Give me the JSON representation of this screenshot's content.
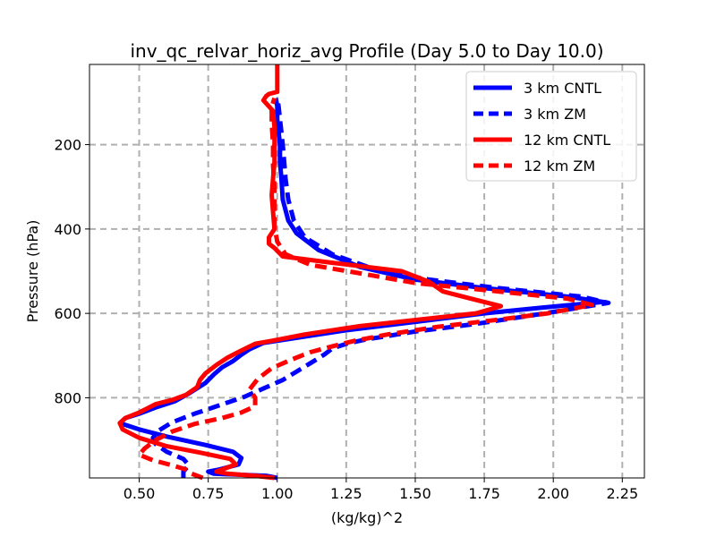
{
  "chart_data": {
    "type": "line",
    "title": "inv_qc_relvar_horiz_avg Profile (Day 5.0 to Day 10.0)",
    "xlabel": "(kg/kg)^2",
    "ylabel": "Pressure (hPa)",
    "xlim": [
      0.32,
      2.33
    ],
    "ylim": [
      990,
      10
    ],
    "y_inverted": true,
    "grid": true,
    "legend_position": "top-right",
    "xticks": [
      0.5,
      0.75,
      1.0,
      1.25,
      1.5,
      1.75,
      2.0,
      2.25
    ],
    "xtick_labels": [
      "0.50",
      "0.75",
      "1.00",
      "1.25",
      "1.50",
      "1.75",
      "2.00",
      "2.25"
    ],
    "yticks": [
      200,
      400,
      600,
      800
    ],
    "ytick_labels": [
      "200",
      "400",
      "600",
      "800"
    ],
    "series": [
      {
        "name": "3 km CNTL",
        "color": "#0000ff",
        "style": "solid",
        "points": [
          [
            1.0,
            990
          ],
          [
            0.96,
            985
          ],
          [
            0.77,
            980
          ],
          [
            0.75,
            975
          ],
          [
            0.79,
            970
          ],
          [
            0.86,
            958
          ],
          [
            0.87,
            943
          ],
          [
            0.84,
            928
          ],
          [
            0.74,
            912
          ],
          [
            0.6,
            892
          ],
          [
            0.5,
            875
          ],
          [
            0.43,
            860
          ],
          [
            0.45,
            848
          ],
          [
            0.5,
            838
          ],
          [
            0.56,
            823
          ],
          [
            0.63,
            808
          ],
          [
            0.68,
            790
          ],
          [
            0.74,
            765
          ],
          [
            0.77,
            745
          ],
          [
            0.8,
            728
          ],
          [
            0.84,
            713
          ],
          [
            0.87,
            698
          ],
          [
            0.9,
            685
          ],
          [
            0.95,
            670
          ],
          [
            1.05,
            660
          ],
          [
            1.25,
            640
          ],
          [
            1.5,
            620
          ],
          [
            1.75,
            600
          ],
          [
            1.95,
            587
          ],
          [
            2.18,
            573
          ],
          [
            2.05,
            560
          ],
          [
            1.75,
            540
          ],
          [
            1.5,
            520
          ],
          [
            1.3,
            490
          ],
          [
            1.15,
            450
          ],
          [
            1.07,
            410
          ],
          [
            1.04,
            380
          ],
          [
            1.02,
            330
          ],
          [
            1.015,
            280
          ],
          [
            1.01,
            240
          ],
          [
            1.01,
            200
          ],
          [
            1.005,
            170
          ],
          [
            1.0,
            140
          ],
          [
            1.0,
            110
          ],
          [
            0.995,
            90
          ]
        ]
      },
      {
        "name": "3 km ZM",
        "color": "#0000ff",
        "style": "dashed",
        "points": [
          [
            0.66,
            990
          ],
          [
            0.66,
            975
          ],
          [
            0.68,
            960
          ],
          [
            0.66,
            945
          ],
          [
            0.6,
            928
          ],
          [
            0.56,
            910
          ],
          [
            0.55,
            895
          ],
          [
            0.57,
            878
          ],
          [
            0.62,
            858
          ],
          [
            0.7,
            838
          ],
          [
            0.79,
            818
          ],
          [
            0.88,
            798
          ],
          [
            0.95,
            778
          ],
          [
            1.02,
            758
          ],
          [
            1.07,
            738
          ],
          [
            1.12,
            718
          ],
          [
            1.17,
            698
          ],
          [
            1.2,
            683
          ],
          [
            1.25,
            672
          ],
          [
            1.32,
            662
          ],
          [
            1.5,
            643
          ],
          [
            1.72,
            625
          ],
          [
            1.92,
            605
          ],
          [
            2.08,
            588
          ],
          [
            2.2,
            575
          ],
          [
            2.1,
            560
          ],
          [
            1.8,
            540
          ],
          [
            1.55,
            520
          ],
          [
            1.35,
            495
          ],
          [
            1.2,
            460
          ],
          [
            1.1,
            420
          ],
          [
            1.06,
            380
          ],
          [
            1.04,
            330
          ],
          [
            1.03,
            280
          ],
          [
            1.025,
            240
          ],
          [
            1.02,
            200
          ],
          [
            1.015,
            170
          ],
          [
            1.01,
            140
          ],
          [
            1.005,
            110
          ],
          [
            1.0,
            90
          ]
        ]
      },
      {
        "name": "12 km CNTL",
        "color": "#ff0000",
        "style": "solid",
        "points": [
          [
            0.99,
            990
          ],
          [
            0.92,
            985
          ],
          [
            0.82,
            980
          ],
          [
            0.78,
            975
          ],
          [
            0.8,
            970
          ],
          [
            0.85,
            958
          ],
          [
            0.83,
            945
          ],
          [
            0.72,
            930
          ],
          [
            0.6,
            915
          ],
          [
            0.5,
            895
          ],
          [
            0.44,
            875
          ],
          [
            0.43,
            860
          ],
          [
            0.45,
            848
          ],
          [
            0.5,
            835
          ],
          [
            0.53,
            825
          ],
          [
            0.56,
            815
          ],
          [
            0.62,
            805
          ],
          [
            0.67,
            793
          ],
          [
            0.71,
            775
          ],
          [
            0.72,
            758
          ],
          [
            0.74,
            742
          ],
          [
            0.78,
            722
          ],
          [
            0.82,
            705
          ],
          [
            0.87,
            688
          ],
          [
            0.92,
            672
          ],
          [
            0.98,
            665
          ],
          [
            1.1,
            650
          ],
          [
            1.3,
            630
          ],
          [
            1.55,
            612
          ],
          [
            1.72,
            600
          ],
          [
            1.81,
            583
          ],
          [
            1.7,
            565
          ],
          [
            1.6,
            548
          ],
          [
            1.55,
            525
          ],
          [
            1.45,
            500
          ],
          [
            1.2,
            480
          ],
          [
            1.02,
            465
          ],
          [
            0.99,
            445
          ],
          [
            0.97,
            435
          ],
          [
            0.97,
            420
          ],
          [
            0.99,
            400
          ],
          [
            0.985,
            360
          ],
          [
            0.98,
            320
          ],
          [
            0.985,
            280
          ],
          [
            0.99,
            240
          ],
          [
            0.99,
            200
          ],
          [
            0.99,
            160
          ],
          [
            0.985,
            120
          ],
          [
            0.95,
            95
          ],
          [
            0.96,
            85
          ],
          [
            0.97,
            80
          ],
          [
            1.0,
            75
          ],
          [
            1.0,
            40
          ],
          [
            1.0,
            10
          ]
        ]
      },
      {
        "name": "12 km ZM",
        "color": "#ff0000",
        "style": "dashed",
        "points": [
          [
            0.73,
            990
          ],
          [
            0.69,
            980
          ],
          [
            0.67,
            970
          ],
          [
            0.62,
            960
          ],
          [
            0.55,
            948
          ],
          [
            0.5,
            935
          ],
          [
            0.52,
            920
          ],
          [
            0.56,
            900
          ],
          [
            0.62,
            880
          ],
          [
            0.7,
            862
          ],
          [
            0.8,
            848
          ],
          [
            0.87,
            835
          ],
          [
            0.92,
            820
          ],
          [
            0.92,
            800
          ],
          [
            0.9,
            780
          ],
          [
            0.93,
            755
          ],
          [
            0.98,
            730
          ],
          [
            1.05,
            710
          ],
          [
            1.12,
            692
          ],
          [
            1.2,
            678
          ],
          [
            1.28,
            665
          ],
          [
            1.4,
            650
          ],
          [
            1.58,
            632
          ],
          [
            1.8,
            615
          ],
          [
            1.98,
            600
          ],
          [
            2.14,
            580
          ],
          [
            2.05,
            565
          ],
          [
            1.8,
            548
          ],
          [
            1.5,
            528
          ],
          [
            1.3,
            505
          ],
          [
            1.12,
            485
          ],
          [
            1.03,
            460
          ],
          [
            1.0,
            430
          ],
          [
            0.99,
            395
          ],
          [
            0.99,
            350
          ],
          [
            0.99,
            300
          ],
          [
            0.985,
            250
          ],
          [
            0.985,
            200
          ],
          [
            0.98,
            150
          ],
          [
            0.98,
            110
          ],
          [
            0.99,
            90
          ]
        ]
      }
    ]
  }
}
